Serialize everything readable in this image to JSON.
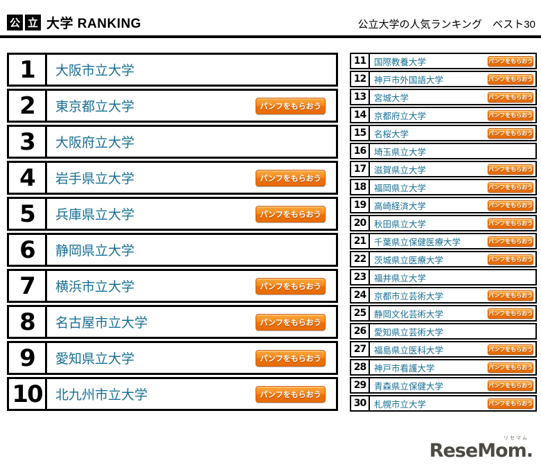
{
  "header": {
    "badge": [
      "公",
      "立"
    ],
    "title": "大学 RANKING",
    "subtitle": "公立大学の人気ランキング　ベスト30"
  },
  "button_label": "パンフをもらおう",
  "left_list": [
    {
      "rank": "1",
      "name": "大阪市立大学",
      "button": false
    },
    {
      "rank": "2",
      "name": "東京都立大学",
      "button": true
    },
    {
      "rank": "3",
      "name": "大阪府立大学",
      "button": false
    },
    {
      "rank": "4",
      "name": "岩手県立大学",
      "button": true
    },
    {
      "rank": "5",
      "name": "兵庫県立大学",
      "button": true
    },
    {
      "rank": "6",
      "name": "静岡県立大学",
      "button": false
    },
    {
      "rank": "7",
      "name": "横浜市立大学",
      "button": true
    },
    {
      "rank": "8",
      "name": "名古屋市立大学",
      "button": true
    },
    {
      "rank": "9",
      "name": "愛知県立大学",
      "button": true
    },
    {
      "rank": "10",
      "name": "北九州市立大学",
      "button": true
    }
  ],
  "right_list": [
    {
      "rank": "11",
      "name": "国際教養大学",
      "button": true
    },
    {
      "rank": "12",
      "name": "神戸市外国語大学",
      "button": true
    },
    {
      "rank": "13",
      "name": "宮城大学",
      "button": true
    },
    {
      "rank": "14",
      "name": "京都府立大学",
      "button": true
    },
    {
      "rank": "15",
      "name": "名桜大学",
      "button": true
    },
    {
      "rank": "16",
      "name": "埼玉県立大学",
      "button": false
    },
    {
      "rank": "17",
      "name": "滋賀県立大学",
      "button": true
    },
    {
      "rank": "18",
      "name": "福岡県立大学",
      "button": true
    },
    {
      "rank": "19",
      "name": "高崎経済大学",
      "button": true
    },
    {
      "rank": "20",
      "name": "秋田県立大学",
      "button": true
    },
    {
      "rank": "21",
      "name": "千葉県立保健医療大学",
      "button": true
    },
    {
      "rank": "22",
      "name": "茨城県立医療大学",
      "button": true
    },
    {
      "rank": "23",
      "name": "福井県立大学",
      "button": false
    },
    {
      "rank": "24",
      "name": "京都市立芸術大学",
      "button": true
    },
    {
      "rank": "25",
      "name": "静岡文化芸術大学",
      "button": true
    },
    {
      "rank": "26",
      "name": "愛知県立芸術大学",
      "button": false
    },
    {
      "rank": "27",
      "name": "福島県立医科大学",
      "button": true
    },
    {
      "rank": "28",
      "name": "神戸市看護大学",
      "button": true
    },
    {
      "rank": "29",
      "name": "青森県立保健大学",
      "button": true
    },
    {
      "rank": "30",
      "name": "札幌市立大学",
      "button": true
    }
  ],
  "logo": {
    "text": "ReseMom.",
    "ruby": "リセマム"
  },
  "colors": {
    "accent_orange": "#ec7208",
    "link_teal": "#176e96",
    "frame_black": "#000000",
    "logo_gray": "#4c4a42"
  }
}
